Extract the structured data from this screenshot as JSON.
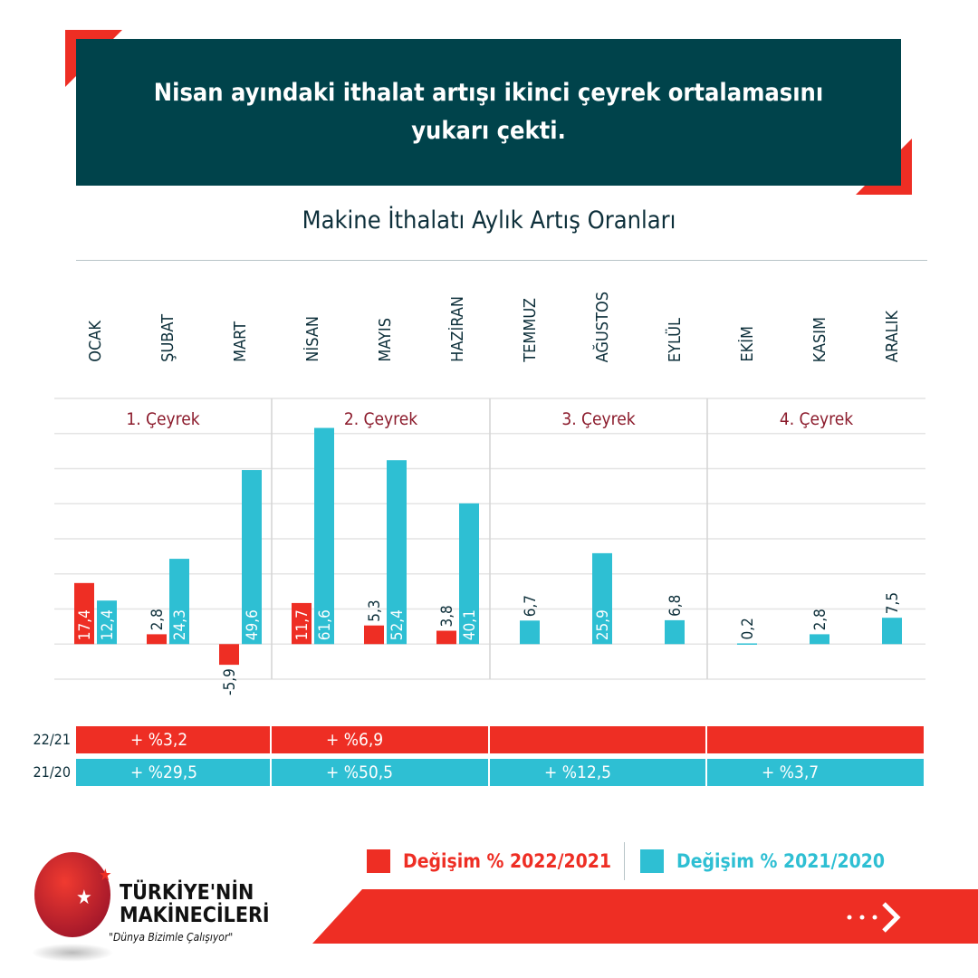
{
  "header": {
    "title": "Nisan ayındaki ithalat artışı ikinci çeyrek ortalamasını yukarı çekti."
  },
  "colors": {
    "red": "#ee2e24",
    "cyan": "#2ebfd3",
    "teal": "#00434b",
    "quarter": "#8b1a2b"
  },
  "chart_data": {
    "type": "bar",
    "title": "Makine İthalatı Aylık Artış Oranları",
    "categories": [
      "OCAK",
      "ŞUBAT",
      "MART",
      "NİSAN",
      "MAYIS",
      "HAZİRAN",
      "TEMMUZ",
      "AĞUSTOS",
      "EYLÜL",
      "EKİM",
      "KASIM",
      "ARALIK"
    ],
    "quarters": [
      "1. Çeyrek",
      "2. Çeyrek",
      "3. Çeyrek",
      "4. Çeyrek"
    ],
    "ylim": [
      -10,
      70
    ],
    "grid": true,
    "legend_placement": "bottom",
    "series": [
      {
        "name": "Değişim % 2022/2021",
        "color": "#ee2e24",
        "values": [
          17.4,
          2.8,
          -5.9,
          11.7,
          5.3,
          3.8,
          null,
          null,
          null,
          null,
          null,
          null
        ],
        "labels": [
          "17,4",
          "2,8",
          "-5,9",
          "11,7",
          "5,3",
          "3,8",
          "",
          "",
          "",
          "",
          "",
          ""
        ]
      },
      {
        "name": "Değişim % 2021/2020",
        "color": "#2ebfd3",
        "values": [
          12.4,
          24.3,
          49.6,
          61.6,
          52.4,
          40.1,
          6.7,
          25.9,
          6.8,
          0.2,
          2.8,
          7.5
        ],
        "labels": [
          "12,4",
          "24,3",
          "49,6",
          "61,6",
          "52,4",
          "40,1",
          "6,7",
          "25,9",
          "6,8",
          "0,2",
          "2,8",
          "7,5"
        ]
      }
    ]
  },
  "summary": {
    "rows": [
      {
        "label": "22/21",
        "values": [
          "+ %3,2",
          "+ %6,9",
          "",
          ""
        ]
      },
      {
        "label": "21/20",
        "values": [
          "+ %29,5",
          "+ %50,5",
          "+ %12,5",
          "+ %3,7"
        ]
      }
    ]
  },
  "logo": {
    "line1": "TÜRKİYE'NİN",
    "line2": "MAKİNECİLERİ",
    "tagline": "\"Dünya Bizimle Çalışıyor\""
  },
  "footer": {
    "next_icon": "dots-chevron-right-icon"
  }
}
